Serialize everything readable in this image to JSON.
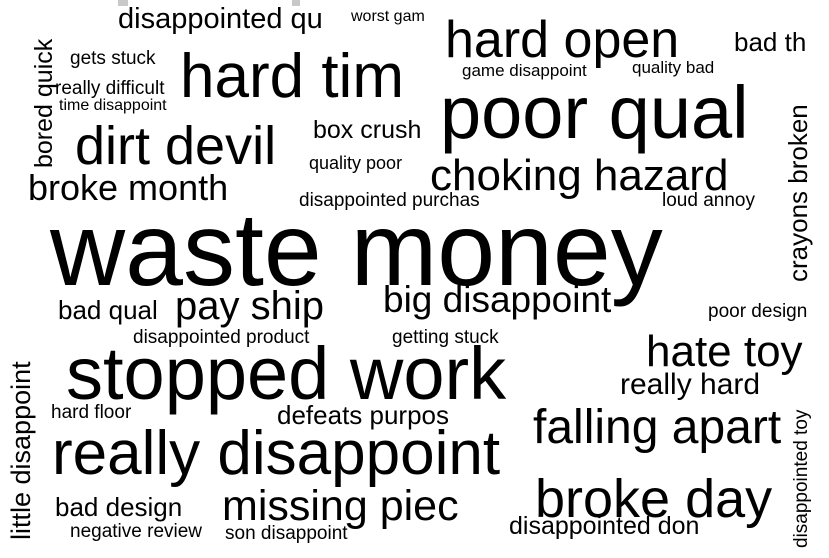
{
  "words": {
    "w01": "disappointed qu",
    "w02": "worst gam",
    "w03": "hard open",
    "w04": "bad th",
    "w05": "gets stuck",
    "w06": "hard tim",
    "w07": "game disappoint",
    "w08": "quality bad",
    "w09": "really difficult",
    "w10": "time disappoint",
    "w11": "poor qual",
    "w12": "bored quick",
    "w13": "box crush",
    "w14": "dirt devil",
    "w15": "quality poor",
    "w16": "choking hazard",
    "w17": "crayons broken",
    "w18": "broke month",
    "w19": "disappointed purchas",
    "w20": "loud annoy",
    "w21": "waste money",
    "w22": "bad qual",
    "w23": "pay ship",
    "w24": "big disappoint",
    "w25": "poor design",
    "w26": "disappointed product",
    "w27": "getting stuck",
    "w28": "hate toy",
    "w29": "little disappoint",
    "w30": "stopped work",
    "w31": "really hard",
    "w32": "hard floor",
    "w33": "defeats purpos",
    "w34": "falling apart",
    "w35": "disappointed toy",
    "w36": "really disappoint",
    "w37": "broke day",
    "w38": "bad design",
    "w39": "missing piec",
    "w40": "negative review",
    "w41": "son disappoint",
    "w42": "disappointed don"
  },
  "colors": {
    "text": "#000000",
    "background": "#ffffff"
  }
}
